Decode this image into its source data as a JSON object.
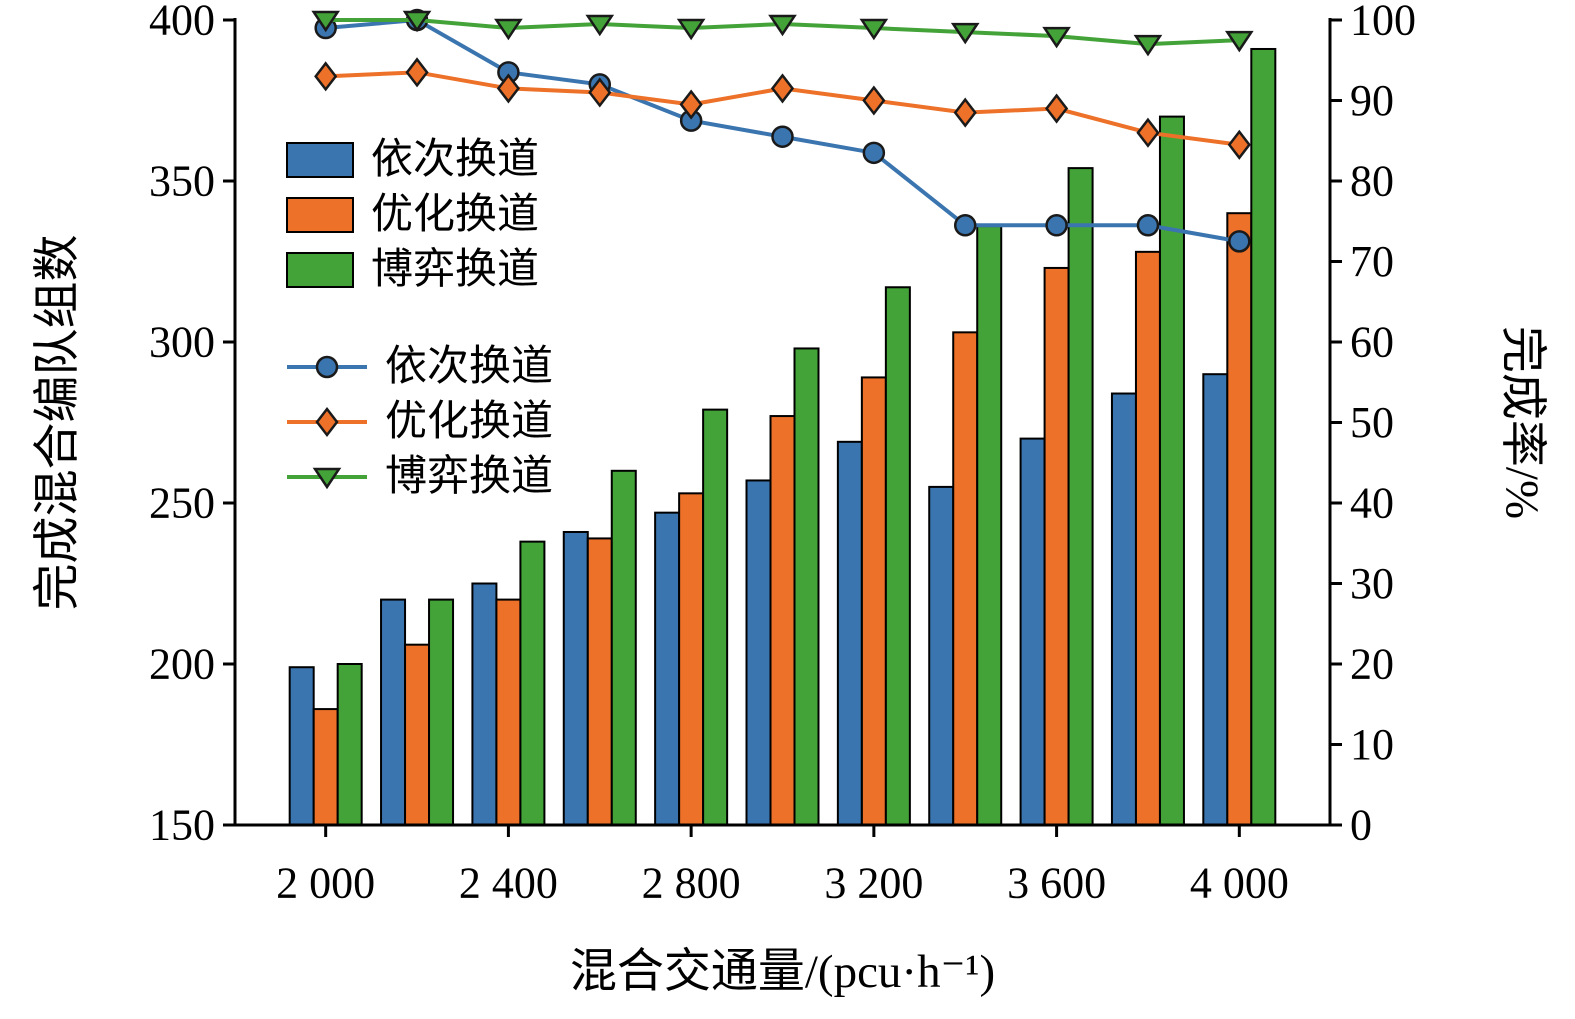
{
  "chart_data": {
    "type": "bar+line",
    "background": "#ffffff",
    "axis_color": "#000000",
    "x": [
      2000,
      2200,
      2400,
      2600,
      2800,
      3000,
      3200,
      3400,
      3600,
      3800,
      4000
    ],
    "x_tick_labels": [
      "2 000",
      "",
      "2 400",
      "",
      "2 800",
      "",
      "3 200",
      "",
      "3 600",
      "",
      "4 000"
    ],
    "xlabel": "混合交通量/(pcu·h⁻¹)",
    "left_axis": {
      "label": "完成混合编队组数",
      "min": 150,
      "max": 400,
      "ticks": [
        150,
        200,
        250,
        300,
        350,
        400
      ]
    },
    "right_axis": {
      "label": "完成率/%",
      "min": 0,
      "max": 100,
      "ticks": [
        0,
        10,
        20,
        30,
        40,
        50,
        60,
        70,
        80,
        90,
        100
      ]
    },
    "bar_series": [
      {
        "name": "依次换道",
        "color": "#3b75af",
        "values": [
          199,
          220,
          225,
          241,
          247,
          257,
          269,
          255,
          270,
          284,
          290
        ]
      },
      {
        "name": "优化换道",
        "color": "#ed7128",
        "values": [
          186,
          206,
          220,
          239,
          253,
          277,
          289,
          303,
          323,
          328,
          340
        ]
      },
      {
        "name": "博弈换道",
        "color": "#43a338",
        "values": [
          200,
          220,
          238,
          260,
          279,
          298,
          317,
          336,
          354,
          370,
          391
        ]
      }
    ],
    "line_series": [
      {
        "name": "依次换道",
        "color": "#3b75af",
        "marker": "circle",
        "values": [
          99,
          100,
          93.5,
          92,
          87.5,
          85.5,
          83.5,
          74.5,
          74.5,
          74.5,
          72.5
        ]
      },
      {
        "name": "优化换道",
        "color": "#ed7128",
        "marker": "diamond",
        "values": [
          93,
          93.5,
          91.5,
          91,
          89.5,
          91.5,
          90,
          88.5,
          89,
          86,
          84.5
        ]
      },
      {
        "name": "博弈换道",
        "color": "#43a338",
        "marker": "triangle-down",
        "values": [
          100,
          100,
          99,
          99.5,
          99,
          99.5,
          99,
          98.5,
          98,
          97,
          97.5
        ]
      }
    ],
    "legend": {
      "bar_items": [
        "依次换道",
        "优化换道",
        "博弈换道"
      ],
      "line_items": [
        "依次换道",
        "优化换道",
        "博弈换道"
      ],
      "position": "upper-left-inside"
    },
    "grid": false
  }
}
